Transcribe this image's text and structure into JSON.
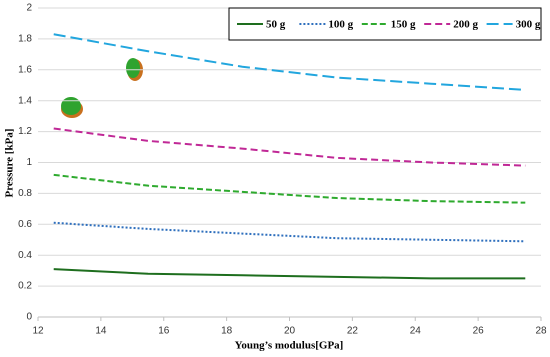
{
  "chart_data": {
    "type": "line",
    "x_label": "Young’s modulus[GPa]",
    "y_label": "Pressure [kPa]",
    "x": [
      12.5,
      15.5,
      18.5,
      21.5,
      24.5,
      27.5
    ],
    "series": [
      {
        "name": "50 g",
        "color": "#1e6e1e",
        "values": [
          0.31,
          0.28,
          0.27,
          0.26,
          0.25,
          0.25
        ]
      },
      {
        "name": "100 g",
        "color": "#2e6fbd",
        "values": [
          0.61,
          0.57,
          0.54,
          0.51,
          0.5,
          0.49
        ]
      },
      {
        "name": "150 g",
        "color": "#2eaa2e",
        "values": [
          0.92,
          0.85,
          0.81,
          0.77,
          0.75,
          0.74
        ]
      },
      {
        "name": "200 g",
        "color": "#c02896",
        "values": [
          1.22,
          1.14,
          1.09,
          1.03,
          1.0,
          0.98
        ]
      },
      {
        "name": "300 g",
        "color": "#22a6de",
        "values": [
          1.83,
          1.72,
          1.62,
          1.55,
          1.51,
          1.47
        ]
      }
    ],
    "xlim": [
      12,
      28
    ],
    "xticks": [
      12,
      14,
      16,
      18,
      20,
      22,
      24,
      26,
      28
    ],
    "ylim": [
      0,
      2
    ],
    "yticks": [
      0,
      0.2,
      0.4,
      0.6,
      0.8,
      1,
      1.2,
      1.4,
      1.6,
      1.8,
      2
    ],
    "grid": true,
    "legend": "top-right"
  }
}
